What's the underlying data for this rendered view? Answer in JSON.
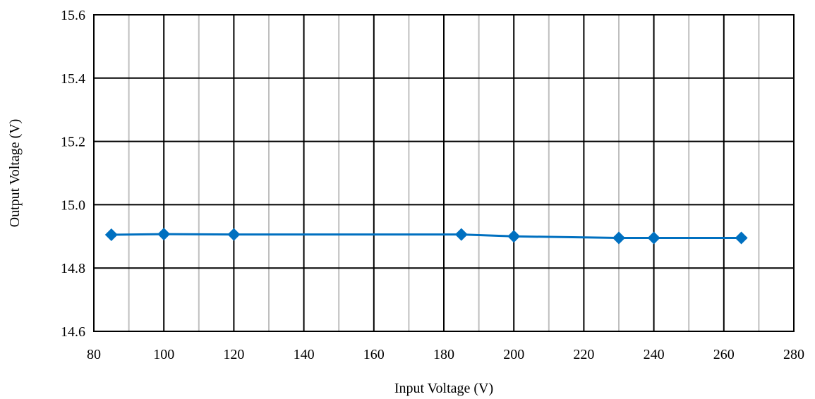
{
  "chart_data": {
    "type": "line",
    "title": "",
    "xlabel": "Input Voltage (V)",
    "ylabel": "Output Voltage (V)",
    "xlim": [
      80,
      280
    ],
    "ylim": [
      14.6,
      15.6
    ],
    "x_ticks": [
      80,
      100,
      120,
      140,
      160,
      180,
      200,
      220,
      240,
      260,
      280
    ],
    "x_tick_labels": [
      "80",
      "100",
      "120",
      "140",
      "160",
      "180",
      "200",
      "220",
      "240",
      "260",
      "280"
    ],
    "x_minor_ticks": [
      90,
      110,
      130,
      150,
      170,
      190,
      210,
      230,
      250,
      270
    ],
    "y_ticks": [
      14.6,
      14.8,
      15.0,
      15.2,
      15.4,
      15.6
    ],
    "y_tick_labels": [
      "14.6",
      "14.8",
      "15.0",
      "15.2",
      "15.4",
      "15.6"
    ],
    "grid": true,
    "legend": "none",
    "series": [
      {
        "color": "#0070C0",
        "marker": "diamond",
        "x": [
          85,
          100,
          120,
          185,
          200,
          230,
          240,
          265
        ],
        "y": [
          14.905,
          14.907,
          14.906,
          14.906,
          14.9,
          14.895,
          14.895,
          14.895
        ]
      }
    ]
  },
  "colors": {
    "major_grid": "#000000",
    "minor_grid": "#BFBFBF",
    "background": "#FFFFFF"
  }
}
